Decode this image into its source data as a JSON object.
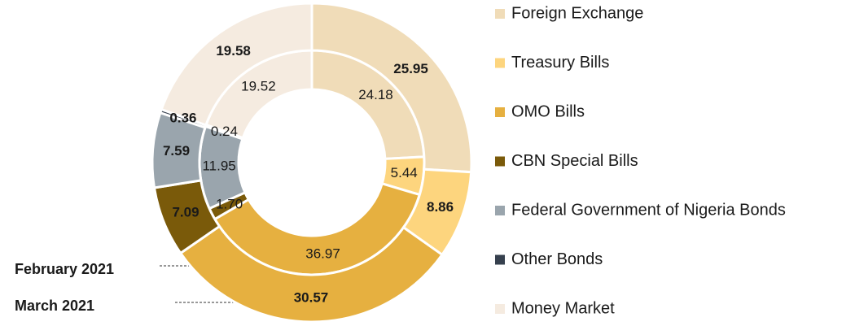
{
  "chart_data": {
    "type": "donut",
    "categories": [
      "Foreign Exchange",
      "Treasury Bills",
      "OMO Bills",
      "CBN Special Bills",
      "Federal Government of Nigeria Bonds",
      "Other Bonds",
      "Money Market"
    ],
    "colors": [
      "#f0dcb8",
      "#fdd57e",
      "#e6b040",
      "#7a5a0a",
      "#9aa5ad",
      "#36404e",
      "#f5ebe0"
    ],
    "series": [
      {
        "name": "February 2021",
        "values": [
          24.18,
          5.44,
          36.97,
          1.7,
          11.95,
          0.24,
          19.52
        ],
        "value_labels": [
          "24.18",
          "5.44",
          "36.97",
          "1.70",
          "11.95",
          "0.24",
          "19.52"
        ]
      },
      {
        "name": "March 2021",
        "values": [
          25.95,
          8.86,
          30.57,
          7.09,
          7.59,
          0.36,
          19.58
        ],
        "value_labels": [
          "25.95",
          "8.86",
          "30.57",
          "7.09",
          "7.59",
          "0.36",
          "19.58"
        ]
      }
    ]
  }
}
